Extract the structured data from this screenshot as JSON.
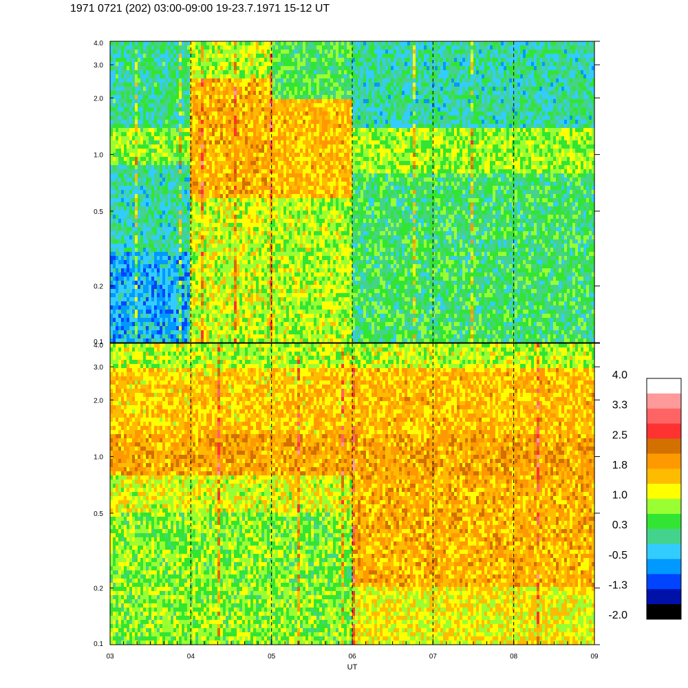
{
  "title": "1971 0721 (202) 03:00-09:00 19-23.7.1971  15-12 UT",
  "chart_data": [
    {
      "type": "heatmap",
      "panel": "upper",
      "xlabel": "",
      "ylabel": "",
      "x_range": [
        3,
        9
      ],
      "y_range": [
        0.1,
        4.0
      ],
      "y_scale": "log",
      "y_ticks": [
        "0.1",
        "0.2",
        "0.5",
        "1.0",
        "2.0",
        "3.0",
        "4.0"
      ],
      "vertical_dashed_lines_at": [
        4,
        5,
        6,
        7,
        8
      ],
      "regions": [
        {
          "x": [
            3.0,
            4.0
          ],
          "y": [
            0.1,
            0.3
          ],
          "level": -0.5
        },
        {
          "x": [
            3.0,
            4.0
          ],
          "y": [
            0.3,
            0.9
          ],
          "level": 0.0
        },
        {
          "x": [
            3.0,
            4.0
          ],
          "y": [
            0.9,
            1.4
          ],
          "level": 0.7
        },
        {
          "x": [
            3.0,
            4.0
          ],
          "y": [
            1.4,
            4.0
          ],
          "level": 0.1
        },
        {
          "x": [
            4.0,
            5.0
          ],
          "y": [
            0.1,
            0.6
          ],
          "level": 1.0
        },
        {
          "x": [
            4.0,
            5.0
          ],
          "y": [
            0.6,
            2.5
          ],
          "level": 1.7
        },
        {
          "x": [
            4.0,
            5.0
          ],
          "y": [
            2.5,
            4.0
          ],
          "level": 0.9
        },
        {
          "x": [
            5.0,
            6.0
          ],
          "y": [
            0.1,
            0.6
          ],
          "level": 0.9
        },
        {
          "x": [
            5.0,
            6.0
          ],
          "y": [
            0.6,
            2.0
          ],
          "level": 1.6
        },
        {
          "x": [
            5.0,
            6.0
          ],
          "y": [
            2.0,
            4.0
          ],
          "level": 0.4
        },
        {
          "x": [
            6.0,
            9.0
          ],
          "y": [
            0.1,
            0.8
          ],
          "level": 0.3
        },
        {
          "x": [
            6.0,
            9.0
          ],
          "y": [
            0.8,
            1.4
          ],
          "level": 0.8
        },
        {
          "x": [
            6.0,
            9.0
          ],
          "y": [
            1.4,
            4.0
          ],
          "level": 0.0
        }
      ]
    },
    {
      "type": "heatmap",
      "panel": "lower",
      "xlabel": "UT",
      "ylabel": "",
      "x_range": [
        3,
        9
      ],
      "y_range": [
        0.1,
        4.0
      ],
      "y_scale": "log",
      "x_ticks": [
        "03",
        "04",
        "05",
        "06",
        "07",
        "08",
        "09"
      ],
      "y_ticks": [
        "0.1",
        "0.2",
        "0.5",
        "1.0",
        "2.0",
        "3.0",
        "4.0"
      ],
      "vertical_dashed_lines_at": [
        4,
        5,
        6,
        7,
        8
      ],
      "regions": [
        {
          "x": [
            3.0,
            6.0
          ],
          "y": [
            0.1,
            0.5
          ],
          "level": 0.7
        },
        {
          "x": [
            3.0,
            6.0
          ],
          "y": [
            0.5,
            0.8
          ],
          "level": 1.1
        },
        {
          "x": [
            3.0,
            6.0
          ],
          "y": [
            0.8,
            1.3
          ],
          "level": 1.8
        },
        {
          "x": [
            3.0,
            6.0
          ],
          "y": [
            1.3,
            3.0
          ],
          "level": 1.5
        },
        {
          "x": [
            3.0,
            6.0
          ],
          "y": [
            3.0,
            4.0
          ],
          "level": 0.9
        },
        {
          "x": [
            6.0,
            9.0
          ],
          "y": [
            0.1,
            0.2
          ],
          "level": 1.2
        },
        {
          "x": [
            6.0,
            9.0
          ],
          "y": [
            0.2,
            0.8
          ],
          "level": 1.7
        },
        {
          "x": [
            6.0,
            9.0
          ],
          "y": [
            0.8,
            1.3
          ],
          "level": 1.8
        },
        {
          "x": [
            6.0,
            9.0
          ],
          "y": [
            1.3,
            3.0
          ],
          "level": 1.6
        },
        {
          "x": [
            6.0,
            9.0
          ],
          "y": [
            3.0,
            4.0
          ],
          "level": 0.9
        }
      ]
    }
  ],
  "colorbar": {
    "labels": [
      "4.0",
      "3.3",
      "2.5",
      "1.8",
      "1.0",
      "0.3",
      "-0.5",
      "-1.3",
      "-2.0"
    ],
    "colors_top_to_bottom": [
      "#ffffff",
      "#ff9a9a",
      "#ff6464",
      "#ff3232",
      "#d27000",
      "#ff9900",
      "#ffbb00",
      "#ffff00",
      "#99ff33",
      "#33e533",
      "#44d38c",
      "#33ccff",
      "#0099ff",
      "#0044ff",
      "#0011aa",
      "#000000"
    ],
    "range": [
      -2.0,
      4.0
    ]
  }
}
